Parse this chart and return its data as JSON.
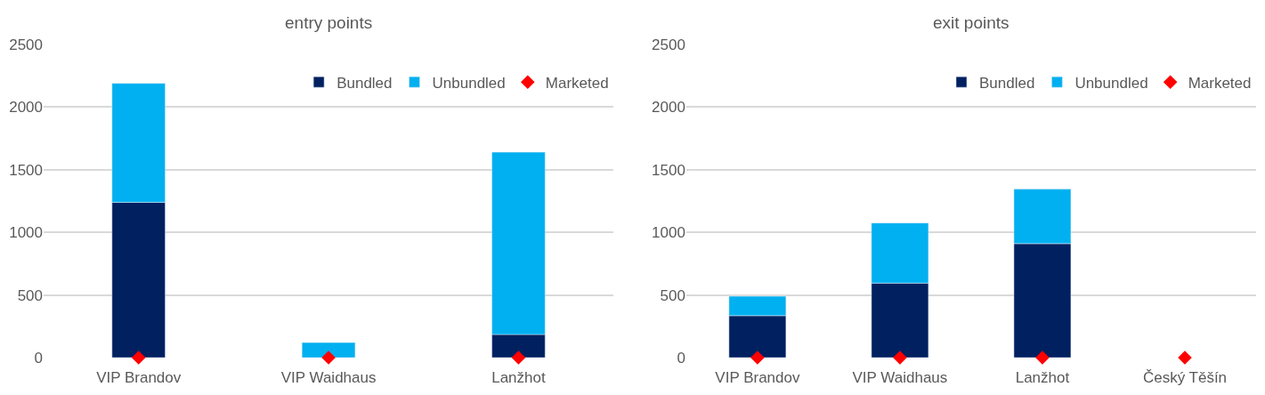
{
  "chart_data": [
    {
      "type": "bar",
      "title": "entry points",
      "categories": [
        "VIP Brandov",
        "VIP Waidhaus",
        "Lanžhot"
      ],
      "stacked": true,
      "ylim": [
        0,
        2500
      ],
      "yticks": [
        0,
        500,
        1000,
        1500,
        2000,
        2500
      ],
      "grid": "y",
      "legend": "top right",
      "series": [
        {
          "name": "Bundled",
          "color": "#002060",
          "values": [
            1240,
            0,
            185
          ]
        },
        {
          "name": "Unbundled",
          "color": "#00b0f0",
          "values": [
            950,
            120,
            1455
          ]
        },
        {
          "name": "Marketed",
          "type": "scatter",
          "marker": "diamond",
          "color": "#ff0000",
          "values": [
            0,
            0,
            0
          ]
        }
      ]
    },
    {
      "type": "bar",
      "title": "exit points",
      "categories": [
        "VIP Brandov",
        "VIP Waidhaus",
        "Lanžhot",
        "Český Těšín"
      ],
      "stacked": true,
      "ylim": [
        0,
        2500
      ],
      "yticks": [
        0,
        500,
        1000,
        1500,
        2000,
        2500
      ],
      "grid": "y",
      "legend": "top right",
      "series": [
        {
          "name": "Bundled",
          "color": "#002060",
          "values": [
            335,
            595,
            910,
            null
          ]
        },
        {
          "name": "Unbundled",
          "color": "#00b0f0",
          "values": [
            155,
            480,
            435,
            null
          ]
        },
        {
          "name": "Marketed",
          "type": "scatter",
          "marker": "diamond",
          "color": "#ff0000",
          "values": [
            0,
            0,
            0,
            0
          ]
        }
      ]
    }
  ]
}
